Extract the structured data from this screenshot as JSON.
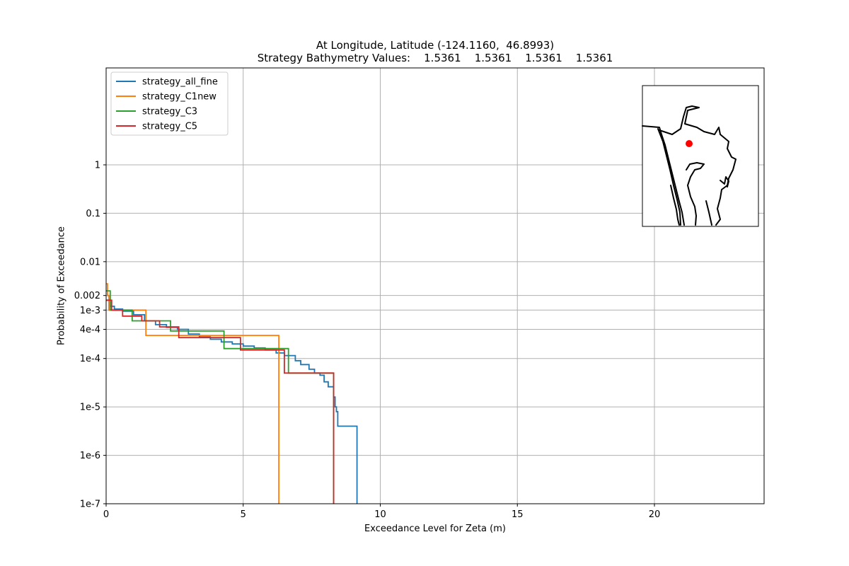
{
  "chart_data": {
    "type": "line",
    "title": "At Longitude, Latitude (-124.1160,  46.8993)",
    "subtitle": "Strategy Bathymetry Values:    1.5361    1.5361    1.5361    1.5361",
    "xlabel": "Exceedance Level for Zeta (m)",
    "ylabel": "Probability of Exceedance",
    "xlim": [
      0,
      24
    ],
    "y_scale": "log",
    "ylim": [
      1e-07,
      100
    ],
    "grid": true,
    "legend_position": "top-left",
    "x_ticks": [
      {
        "value": 0,
        "label": "0"
      },
      {
        "value": 5,
        "label": "5"
      },
      {
        "value": 10,
        "label": "10"
      },
      {
        "value": 15,
        "label": "15"
      },
      {
        "value": 20,
        "label": "20"
      }
    ],
    "y_ticks": [
      {
        "value": 1e-07,
        "label": "1e-7"
      },
      {
        "value": 1e-06,
        "label": "1e-6"
      },
      {
        "value": 1e-05,
        "label": "1e-5"
      },
      {
        "value": 0.0001,
        "label": "1e-4"
      },
      {
        "value": 0.0004,
        "label": "4e-4"
      },
      {
        "value": 0.001,
        "label": "1e-3"
      },
      {
        "value": 0.002,
        "label": "0.002"
      },
      {
        "value": 0.01,
        "label": "0.01"
      },
      {
        "value": 0.1,
        "label": "0.1"
      },
      {
        "value": 1,
        "label": "1"
      }
    ],
    "series": [
      {
        "name": "strategy_all_fine",
        "color": "#1f77b4",
        "points": [
          [
            0.0,
            0.0016
          ],
          [
            0.15,
            0.0016
          ],
          [
            0.15,
            0.0012
          ],
          [
            0.3,
            0.0012
          ],
          [
            0.3,
            0.00105
          ],
          [
            0.6,
            0.00105
          ],
          [
            0.6,
            0.00095
          ],
          [
            1.0,
            0.00095
          ],
          [
            1.0,
            0.0008
          ],
          [
            1.4,
            0.0008
          ],
          [
            1.4,
            0.0006
          ],
          [
            1.8,
            0.0006
          ],
          [
            1.8,
            0.0005
          ],
          [
            2.2,
            0.0005
          ],
          [
            2.2,
            0.00044
          ],
          [
            2.6,
            0.00044
          ],
          [
            2.6,
            0.0004
          ],
          [
            3.0,
            0.0004
          ],
          [
            3.0,
            0.00032
          ],
          [
            3.4,
            0.00032
          ],
          [
            3.4,
            0.00028
          ],
          [
            3.8,
            0.00028
          ],
          [
            3.8,
            0.00025
          ],
          [
            4.2,
            0.00025
          ],
          [
            4.2,
            0.00022
          ],
          [
            4.6,
            0.00022
          ],
          [
            4.6,
            0.0002
          ],
          [
            5.0,
            0.0002
          ],
          [
            5.0,
            0.00018
          ],
          [
            5.4,
            0.00018
          ],
          [
            5.4,
            0.000165
          ],
          [
            5.8,
            0.000165
          ],
          [
            5.8,
            0.00015
          ],
          [
            6.2,
            0.00015
          ],
          [
            6.2,
            0.00013
          ],
          [
            6.5,
            0.00013
          ],
          [
            6.5,
            0.000115
          ],
          [
            6.9,
            0.000115
          ],
          [
            6.9,
            9e-05
          ],
          [
            7.1,
            9e-05
          ],
          [
            7.1,
            7.5e-05
          ],
          [
            7.4,
            7.5e-05
          ],
          [
            7.4,
            6e-05
          ],
          [
            7.6,
            6e-05
          ],
          [
            7.6,
            5e-05
          ],
          [
            7.8,
            5e-05
          ],
          [
            7.8,
            4.5e-05
          ],
          [
            7.95,
            4.5e-05
          ],
          [
            7.95,
            3.3e-05
          ],
          [
            8.1,
            3.3e-05
          ],
          [
            8.1,
            2.6e-05
          ],
          [
            8.3,
            2.6e-05
          ],
          [
            8.3,
            1.6e-05
          ],
          [
            8.35,
            1.6e-05
          ],
          [
            8.35,
            1e-05
          ],
          [
            8.4,
            1e-05
          ],
          [
            8.4,
            8e-06
          ],
          [
            8.45,
            8e-06
          ],
          [
            8.45,
            4e-06
          ],
          [
            9.15,
            4e-06
          ],
          [
            9.15,
            1e-07
          ]
        ]
      },
      {
        "name": "strategy_C1new",
        "color": "#ff7f0e",
        "points": [
          [
            0.0,
            0.0035
          ],
          [
            0.05,
            0.0035
          ],
          [
            0.05,
            0.002
          ],
          [
            0.1,
            0.002
          ],
          [
            0.1,
            0.001
          ],
          [
            1.45,
            0.001
          ],
          [
            1.45,
            0.0003
          ],
          [
            6.3,
            0.0003
          ],
          [
            6.3,
            1e-07
          ]
        ]
      },
      {
        "name": "strategy_C3",
        "color": "#2ca02c",
        "points": [
          [
            0.0,
            0.0025
          ],
          [
            0.15,
            0.0025
          ],
          [
            0.15,
            0.001
          ],
          [
            0.95,
            0.001
          ],
          [
            0.95,
            0.0006
          ],
          [
            2.35,
            0.0006
          ],
          [
            2.35,
            0.00037
          ],
          [
            4.3,
            0.00037
          ],
          [
            4.3,
            0.00016
          ],
          [
            6.65,
            0.00016
          ],
          [
            6.65,
            5e-05
          ],
          [
            8.3,
            5e-05
          ],
          [
            8.3,
            1e-07
          ]
        ]
      },
      {
        "name": "strategy_C5",
        "color": "#d62728",
        "points": [
          [
            0.0,
            0.0016
          ],
          [
            0.2,
            0.0016
          ],
          [
            0.2,
            0.001
          ],
          [
            0.6,
            0.001
          ],
          [
            0.6,
            0.00075
          ],
          [
            1.3,
            0.00075
          ],
          [
            1.3,
            0.0006
          ],
          [
            1.95,
            0.0006
          ],
          [
            1.95,
            0.00045
          ],
          [
            2.65,
            0.00045
          ],
          [
            2.65,
            0.00027
          ],
          [
            4.9,
            0.00027
          ],
          [
            4.9,
            0.00015
          ],
          [
            6.5,
            0.00015
          ],
          [
            6.5,
            5e-05
          ],
          [
            8.3,
            5e-05
          ],
          [
            8.3,
            1e-07
          ]
        ]
      }
    ],
    "inset_map": {
      "coastline_color": "#000000",
      "marker_color": "#ff0000"
    }
  }
}
